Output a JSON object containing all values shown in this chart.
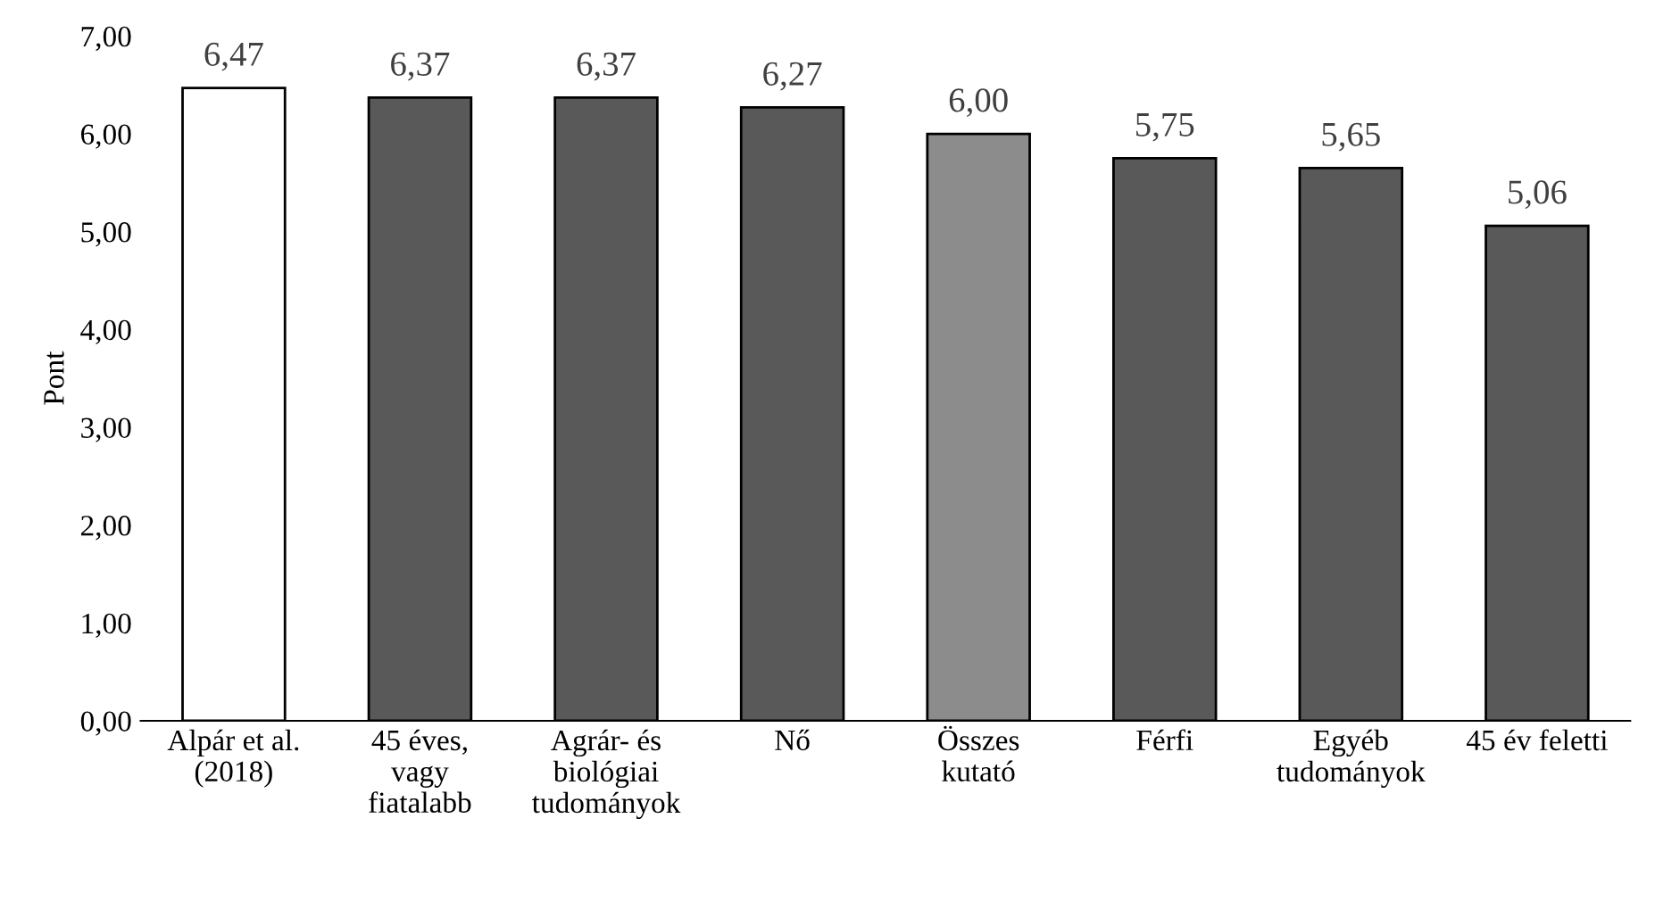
{
  "chart_data": {
    "type": "bar",
    "ylabel": "Pont",
    "categories": [
      "Alpár et al.\n(2018)",
      "45 éves,\nvagy\nfiatalabb",
      "Agrár- és\nbiológiai\ntudományok",
      "Nő",
      "Összes\nkutató",
      "Férfi",
      "Egyéb\ntudományok",
      "45 év feletti"
    ],
    "values": [
      6.47,
      6.37,
      6.37,
      6.27,
      6.0,
      5.75,
      5.65,
      5.06
    ],
    "colors": [
      "#ffffff",
      "#595959",
      "#595959",
      "#595959",
      "#8c8c8c",
      "#595959",
      "#595959",
      "#595959"
    ],
    "value_labels": [
      "6,47",
      "6,37",
      "6,37",
      "6,27",
      "6,00",
      "5,75",
      "5,65",
      "5,06"
    ],
    "ylim": [
      0,
      7
    ],
    "yticks": [
      {
        "value": 0,
        "label": "0,00"
      },
      {
        "value": 1,
        "label": "1,00"
      },
      {
        "value": 2,
        "label": "2,00"
      },
      {
        "value": 3,
        "label": "3,00"
      },
      {
        "value": 4,
        "label": "4,00"
      },
      {
        "value": 5,
        "label": "5,00"
      },
      {
        "value": 6,
        "label": "6,00"
      },
      {
        "value": 7,
        "label": "7,00"
      }
    ],
    "grid": false,
    "legend": false
  }
}
